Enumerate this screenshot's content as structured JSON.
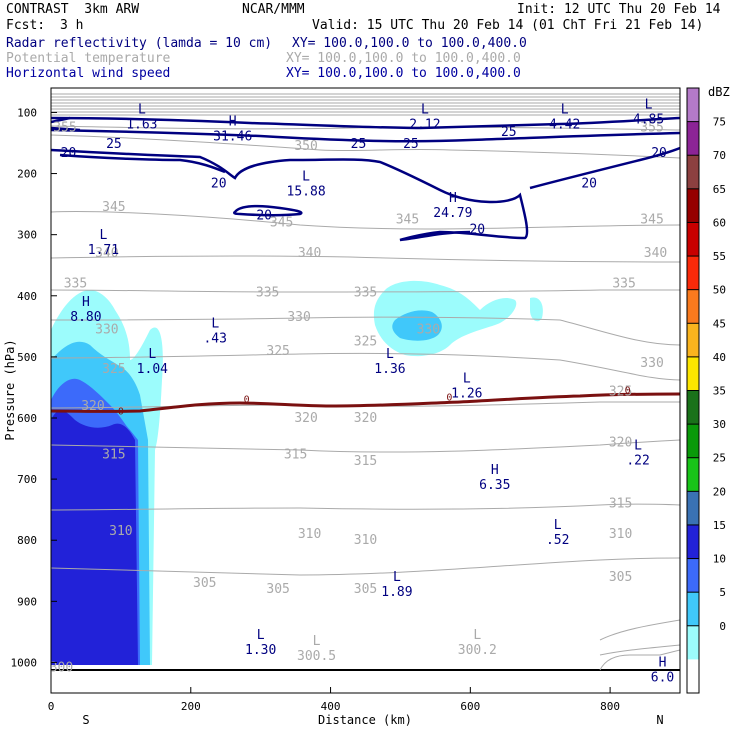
{
  "header": {
    "model": "CONTRAST  3km ARW",
    "org": "NCAR/MMM",
    "init": "Init: 12 UTC Thu 20 Feb 14",
    "fcst_label": "Fcst:",
    "fcst_value": "3 h",
    "valid": "Valid: 15 UTC Thu 20 Feb 14 (01 ChT Fri 21 Feb 14)",
    "fields": [
      {
        "name": "Radar reflectivity (lamda = 10 cm)",
        "xy": "XY= 100.0,100.0 to 100.0,400.0",
        "color": "#000080"
      },
      {
        "name": "Potential temperature",
        "xy": "XY= 100.0,100.0 to 100.0,400.0",
        "color": "#aaaaaa"
      },
      {
        "name": "Horizontal wind speed",
        "xy": "XY= 100.0,100.0 to 100.0,400.0",
        "color": "#0000a0"
      }
    ]
  },
  "chart_data": {
    "type": "cross-section contour",
    "xlabel": "Distance (km)",
    "ylabel": "Pressure (hPa)",
    "xlim": [
      0,
      900
    ],
    "ylim": [
      1050,
      60
    ],
    "x_ticks": [
      0,
      200,
      400,
      600,
      800
    ],
    "y_ticks": [
      100,
      200,
      300,
      400,
      500,
      600,
      700,
      800,
      900,
      1000
    ],
    "x_end_labels": {
      "left": "S",
      "right": "N"
    },
    "colorbar": {
      "unit": "dBZ",
      "levels": [
        0,
        5,
        10,
        15,
        20,
        25,
        30,
        35,
        40,
        45,
        50,
        55,
        60,
        65,
        70,
        75
      ],
      "colors": [
        "#ffffff",
        "#9cfcfc",
        "#40c8fa",
        "#3c6afa",
        "#2222d8",
        "#3a72b4",
        "#19c419",
        "#0a9a0a",
        "#1a721a",
        "#fce600",
        "#fab41e",
        "#fa7a1e",
        "#fa2a0a",
        "#c80000",
        "#960000",
        "#8c4040",
        "#8c2496",
        "#b47ac8"
      ]
    },
    "theta_labels": [
      {
        "text": "355",
        "x": 20,
        "p": 125
      },
      {
        "text": "355",
        "x": 860,
        "p": 125
      },
      {
        "text": "350",
        "x": 365,
        "p": 155
      },
      {
        "text": "345",
        "x": 90,
        "p": 255
      },
      {
        "text": "345",
        "x": 330,
        "p": 280
      },
      {
        "text": "345",
        "x": 510,
        "p": 275
      },
      {
        "text": "345",
        "x": 860,
        "p": 275
      },
      {
        "text": "340",
        "x": 80,
        "p": 330
      },
      {
        "text": "340",
        "x": 370,
        "p": 330
      },
      {
        "text": "340",
        "x": 865,
        "p": 330
      },
      {
        "text": "335",
        "x": 35,
        "p": 380
      },
      {
        "text": "335",
        "x": 310,
        "p": 395
      },
      {
        "text": "335",
        "x": 450,
        "p": 395
      },
      {
        "text": "335",
        "x": 820,
        "p": 380
      },
      {
        "text": "330",
        "x": 80,
        "p": 455
      },
      {
        "text": "330",
        "x": 355,
        "p": 435
      },
      {
        "text": "330",
        "x": 540,
        "p": 455
      },
      {
        "text": "330",
        "x": 860,
        "p": 510
      },
      {
        "text": "325",
        "x": 90,
        "p": 520
      },
      {
        "text": "325",
        "x": 325,
        "p": 490
      },
      {
        "text": "325",
        "x": 450,
        "p": 475
      },
      {
        "text": "325",
        "x": 815,
        "p": 557
      },
      {
        "text": "320",
        "x": 60,
        "p": 580
      },
      {
        "text": "320",
        "x": 365,
        "p": 600
      },
      {
        "text": "320",
        "x": 450,
        "p": 600
      },
      {
        "text": "320",
        "x": 815,
        "p": 640
      },
      {
        "text": "315",
        "x": 90,
        "p": 660
      },
      {
        "text": "315",
        "x": 350,
        "p": 660
      },
      {
        "text": "315",
        "x": 450,
        "p": 670
      },
      {
        "text": "315",
        "x": 815,
        "p": 740
      },
      {
        "text": "310",
        "x": 100,
        "p": 785
      },
      {
        "text": "310",
        "x": 370,
        "p": 790
      },
      {
        "text": "310",
        "x": 450,
        "p": 800
      },
      {
        "text": "310",
        "x": 815,
        "p": 790
      },
      {
        "text": "305",
        "x": 220,
        "p": 870
      },
      {
        "text": "305",
        "x": 325,
        "p": 880
      },
      {
        "text": "305",
        "x": 450,
        "p": 880
      },
      {
        "text": "305",
        "x": 815,
        "p": 860
      },
      {
        "text": "300",
        "x": 15,
        "p": 1008
      }
    ],
    "wind_speed_labels": [
      {
        "text": "25",
        "x": 90,
        "p": 150
      },
      {
        "text": "20",
        "x": 25,
        "p": 165
      },
      {
        "text": "20",
        "x": 240,
        "p": 215
      },
      {
        "text": "20",
        "x": 305,
        "p": 267
      },
      {
        "text": "25",
        "x": 440,
        "p": 150
      },
      {
        "text": "25",
        "x": 515,
        "p": 150
      },
      {
        "text": "25",
        "x": 655,
        "p": 130
      },
      {
        "text": "20",
        "x": 610,
        "p": 290
      },
      {
        "text": "20",
        "x": 770,
        "p": 215
      },
      {
        "text": "20",
        "x": 870,
        "p": 165
      }
    ],
    "extrema": [
      {
        "type": "L",
        "value": "1.63",
        "x": 130,
        "p": 105
      },
      {
        "type": "H",
        "value": "31.46",
        "x": 260,
        "p": 125
      },
      {
        "type": "L",
        "value": "2.12",
        "x": 535,
        "p": 105
      },
      {
        "type": "L",
        "value": "4.42",
        "x": 735,
        "p": 105
      },
      {
        "type": "L",
        "value": "4.85",
        "x": 855,
        "p": 97
      },
      {
        "type": "L",
        "value": "15.88",
        "x": 365,
        "p": 215
      },
      {
        "type": "H",
        "value": "24.79",
        "x": 575,
        "p": 250
      },
      {
        "type": "L",
        "value": "1.71",
        "x": 75,
        "p": 310
      },
      {
        "type": "H",
        "value": "8.80",
        "x": 50,
        "p": 420
      },
      {
        "type": "L",
        "value": ".43",
        "x": 235,
        "p": 455
      },
      {
        "type": "L",
        "value": "1.04",
        "x": 145,
        "p": 505
      },
      {
        "type": "L",
        "value": "1.36",
        "x": 485,
        "p": 505
      },
      {
        "type": "L",
        "value": "1.26",
        "x": 595,
        "p": 545
      },
      {
        "type": "L",
        "value": ".22",
        "x": 840,
        "p": 655
      },
      {
        "type": "H",
        "value": "6.35",
        "x": 635,
        "p": 695
      },
      {
        "type": "L",
        "value": ".52",
        "x": 725,
        "p": 785
      },
      {
        "type": "L",
        "value": "1.89",
        "x": 495,
        "p": 870
      },
      {
        "type": "L",
        "value": "1.30",
        "x": 300,
        "p": 965
      },
      {
        "type": "L",
        "value": "300.5",
        "x": 380,
        "p": 975
      },
      {
        "type": "L",
        "value": "300.2",
        "x": 610,
        "p": 965
      },
      {
        "type": "H",
        "value": "6.0",
        "x": 875,
        "p": 1010
      }
    ],
    "zero_line_labels": [
      {
        "text": "0",
        "x": 100,
        "p": 588
      },
      {
        "text": "0",
        "x": 280,
        "p": 568
      },
      {
        "text": "0",
        "x": 570,
        "p": 565
      },
      {
        "text": "0",
        "x": 825,
        "p": 553
      }
    ]
  }
}
